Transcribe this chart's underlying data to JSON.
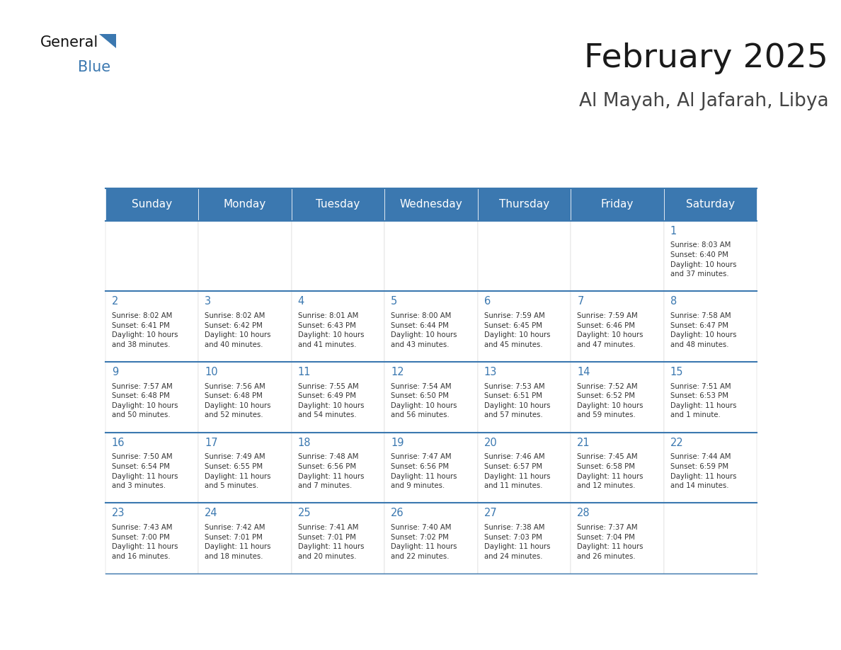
{
  "title": "February 2025",
  "subtitle": "Al Mayah, Al Jafarah, Libya",
  "days_of_week": [
    "Sunday",
    "Monday",
    "Tuesday",
    "Wednesday",
    "Thursday",
    "Friday",
    "Saturday"
  ],
  "header_bg_color": "#3B78B0",
  "header_text_color": "#FFFFFF",
  "border_color": "#3B78B0",
  "day_number_color": "#3B78B0",
  "text_color": "#333333",
  "calendar_data": [
    [
      null,
      null,
      null,
      null,
      null,
      null,
      {
        "day": 1,
        "sunrise": "8:03 AM",
        "sunset": "6:40 PM",
        "daylight": "10 hours\nand 37 minutes."
      }
    ],
    [
      {
        "day": 2,
        "sunrise": "8:02 AM",
        "sunset": "6:41 PM",
        "daylight": "10 hours\nand 38 minutes."
      },
      {
        "day": 3,
        "sunrise": "8:02 AM",
        "sunset": "6:42 PM",
        "daylight": "10 hours\nand 40 minutes."
      },
      {
        "day": 4,
        "sunrise": "8:01 AM",
        "sunset": "6:43 PM",
        "daylight": "10 hours\nand 41 minutes."
      },
      {
        "day": 5,
        "sunrise": "8:00 AM",
        "sunset": "6:44 PM",
        "daylight": "10 hours\nand 43 minutes."
      },
      {
        "day": 6,
        "sunrise": "7:59 AM",
        "sunset": "6:45 PM",
        "daylight": "10 hours\nand 45 minutes."
      },
      {
        "day": 7,
        "sunrise": "7:59 AM",
        "sunset": "6:46 PM",
        "daylight": "10 hours\nand 47 minutes."
      },
      {
        "day": 8,
        "sunrise": "7:58 AM",
        "sunset": "6:47 PM",
        "daylight": "10 hours\nand 48 minutes."
      }
    ],
    [
      {
        "day": 9,
        "sunrise": "7:57 AM",
        "sunset": "6:48 PM",
        "daylight": "10 hours\nand 50 minutes."
      },
      {
        "day": 10,
        "sunrise": "7:56 AM",
        "sunset": "6:48 PM",
        "daylight": "10 hours\nand 52 minutes."
      },
      {
        "day": 11,
        "sunrise": "7:55 AM",
        "sunset": "6:49 PM",
        "daylight": "10 hours\nand 54 minutes."
      },
      {
        "day": 12,
        "sunrise": "7:54 AM",
        "sunset": "6:50 PM",
        "daylight": "10 hours\nand 56 minutes."
      },
      {
        "day": 13,
        "sunrise": "7:53 AM",
        "sunset": "6:51 PM",
        "daylight": "10 hours\nand 57 minutes."
      },
      {
        "day": 14,
        "sunrise": "7:52 AM",
        "sunset": "6:52 PM",
        "daylight": "10 hours\nand 59 minutes."
      },
      {
        "day": 15,
        "sunrise": "7:51 AM",
        "sunset": "6:53 PM",
        "daylight": "11 hours\nand 1 minute."
      }
    ],
    [
      {
        "day": 16,
        "sunrise": "7:50 AM",
        "sunset": "6:54 PM",
        "daylight": "11 hours\nand 3 minutes."
      },
      {
        "day": 17,
        "sunrise": "7:49 AM",
        "sunset": "6:55 PM",
        "daylight": "11 hours\nand 5 minutes."
      },
      {
        "day": 18,
        "sunrise": "7:48 AM",
        "sunset": "6:56 PM",
        "daylight": "11 hours\nand 7 minutes."
      },
      {
        "day": 19,
        "sunrise": "7:47 AM",
        "sunset": "6:56 PM",
        "daylight": "11 hours\nand 9 minutes."
      },
      {
        "day": 20,
        "sunrise": "7:46 AM",
        "sunset": "6:57 PM",
        "daylight": "11 hours\nand 11 minutes."
      },
      {
        "day": 21,
        "sunrise": "7:45 AM",
        "sunset": "6:58 PM",
        "daylight": "11 hours\nand 12 minutes."
      },
      {
        "day": 22,
        "sunrise": "7:44 AM",
        "sunset": "6:59 PM",
        "daylight": "11 hours\nand 14 minutes."
      }
    ],
    [
      {
        "day": 23,
        "sunrise": "7:43 AM",
        "sunset": "7:00 PM",
        "daylight": "11 hours\nand 16 minutes."
      },
      {
        "day": 24,
        "sunrise": "7:42 AM",
        "sunset": "7:01 PM",
        "daylight": "11 hours\nand 18 minutes."
      },
      {
        "day": 25,
        "sunrise": "7:41 AM",
        "sunset": "7:01 PM",
        "daylight": "11 hours\nand 20 minutes."
      },
      {
        "day": 26,
        "sunrise": "7:40 AM",
        "sunset": "7:02 PM",
        "daylight": "11 hours\nand 22 minutes."
      },
      {
        "day": 27,
        "sunrise": "7:38 AM",
        "sunset": "7:03 PM",
        "daylight": "11 hours\nand 24 minutes."
      },
      {
        "day": 28,
        "sunrise": "7:37 AM",
        "sunset": "7:04 PM",
        "daylight": "11 hours\nand 26 minutes."
      },
      null
    ]
  ]
}
